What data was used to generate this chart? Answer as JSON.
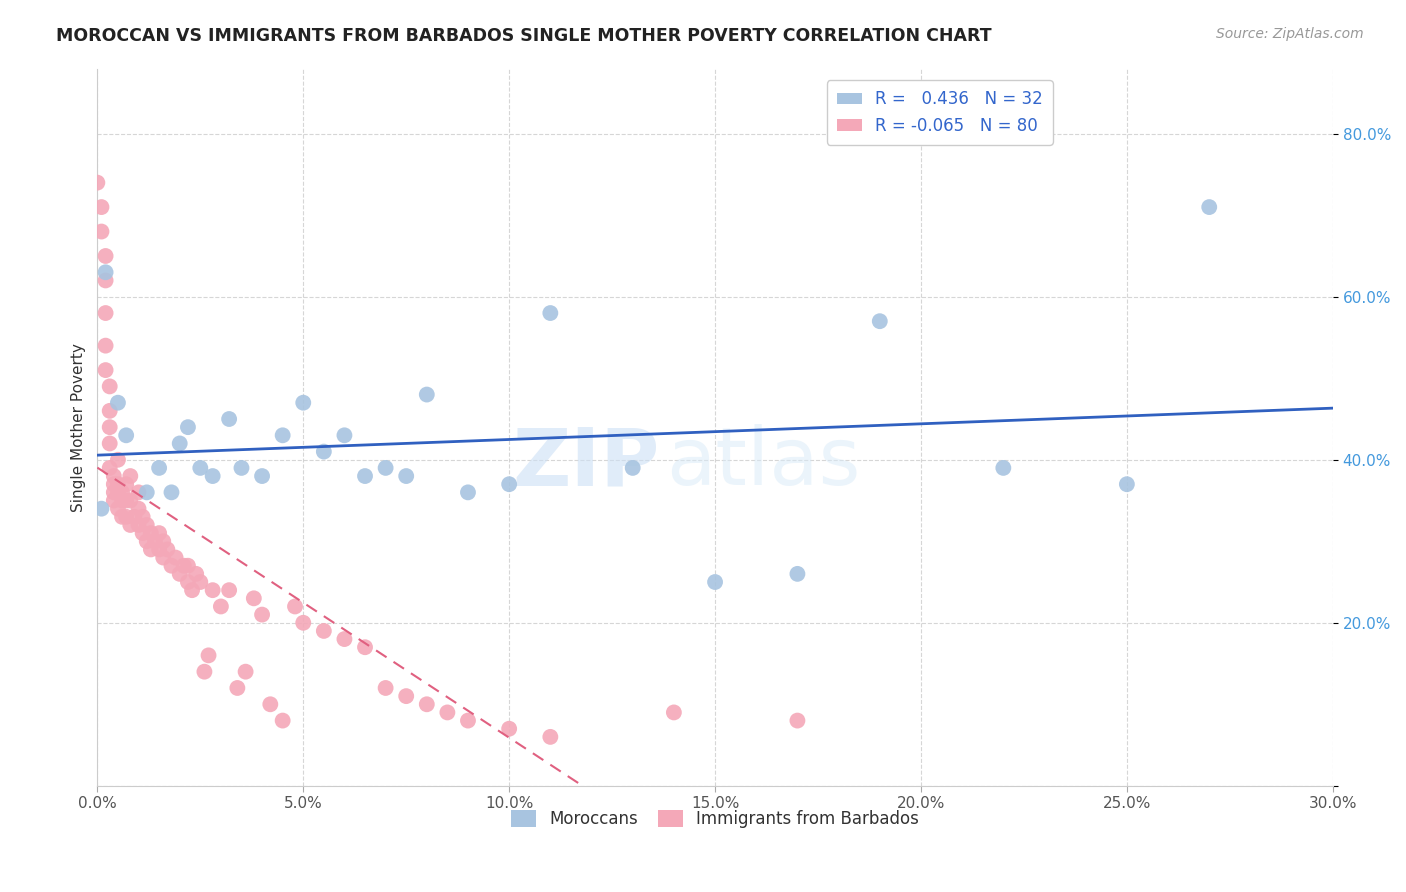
{
  "title": "MOROCCAN VS IMMIGRANTS FROM BARBADOS SINGLE MOTHER POVERTY CORRELATION CHART",
  "source": "Source: ZipAtlas.com",
  "ylabel": "Single Mother Poverty",
  "legend_label1": "Moroccans",
  "legend_label2": "Immigrants from Barbados",
  "R1": 0.436,
  "N1": 32,
  "R2": -0.065,
  "N2": 80,
  "color1": "#a8c4e0",
  "color2": "#f4a8b8",
  "line_color1": "#3060c0",
  "line_color2": "#e06080",
  "xmin": 0.0,
  "xmax": 0.3,
  "ymin": 0.0,
  "ymax": 0.88,
  "moroccan_x": [
    0.001,
    0.002,
    0.005,
    0.007,
    0.012,
    0.015,
    0.018,
    0.02,
    0.022,
    0.025,
    0.028,
    0.032,
    0.035,
    0.04,
    0.045,
    0.05,
    0.055,
    0.06,
    0.065,
    0.07,
    0.075,
    0.08,
    0.09,
    0.1,
    0.11,
    0.13,
    0.15,
    0.17,
    0.19,
    0.22,
    0.25,
    0.27
  ],
  "moroccan_y": [
    0.34,
    0.63,
    0.47,
    0.43,
    0.36,
    0.39,
    0.36,
    0.42,
    0.44,
    0.39,
    0.38,
    0.45,
    0.39,
    0.38,
    0.43,
    0.47,
    0.41,
    0.43,
    0.38,
    0.39,
    0.38,
    0.48,
    0.36,
    0.37,
    0.58,
    0.39,
    0.25,
    0.26,
    0.57,
    0.39,
    0.37,
    0.71
  ],
  "barbados_x": [
    0.0,
    0.001,
    0.001,
    0.002,
    0.002,
    0.002,
    0.002,
    0.002,
    0.003,
    0.003,
    0.003,
    0.003,
    0.003,
    0.004,
    0.004,
    0.004,
    0.004,
    0.005,
    0.005,
    0.005,
    0.005,
    0.006,
    0.006,
    0.006,
    0.007,
    0.007,
    0.007,
    0.008,
    0.008,
    0.008,
    0.009,
    0.01,
    0.01,
    0.01,
    0.011,
    0.011,
    0.012,
    0.012,
    0.013,
    0.013,
    0.014,
    0.015,
    0.015,
    0.016,
    0.016,
    0.017,
    0.018,
    0.019,
    0.02,
    0.021,
    0.022,
    0.022,
    0.023,
    0.024,
    0.025,
    0.026,
    0.027,
    0.028,
    0.03,
    0.032,
    0.034,
    0.036,
    0.038,
    0.04,
    0.042,
    0.045,
    0.048,
    0.05,
    0.055,
    0.06,
    0.065,
    0.07,
    0.075,
    0.08,
    0.085,
    0.09,
    0.1,
    0.11,
    0.14,
    0.17
  ],
  "barbados_y": [
    0.74,
    0.71,
    0.68,
    0.65,
    0.62,
    0.58,
    0.54,
    0.51,
    0.49,
    0.46,
    0.44,
    0.42,
    0.39,
    0.37,
    0.36,
    0.35,
    0.38,
    0.36,
    0.34,
    0.37,
    0.4,
    0.35,
    0.33,
    0.36,
    0.33,
    0.35,
    0.37,
    0.32,
    0.35,
    0.38,
    0.33,
    0.32,
    0.34,
    0.36,
    0.31,
    0.33,
    0.3,
    0.32,
    0.29,
    0.31,
    0.3,
    0.29,
    0.31,
    0.28,
    0.3,
    0.29,
    0.27,
    0.28,
    0.26,
    0.27,
    0.25,
    0.27,
    0.24,
    0.26,
    0.25,
    0.14,
    0.16,
    0.24,
    0.22,
    0.24,
    0.12,
    0.14,
    0.23,
    0.21,
    0.1,
    0.08,
    0.22,
    0.2,
    0.19,
    0.18,
    0.17,
    0.12,
    0.11,
    0.1,
    0.09,
    0.08,
    0.07,
    0.06,
    0.09,
    0.08
  ],
  "watermark_zip": "ZIP",
  "watermark_atlas": "atlas",
  "xticks": [
    0.0,
    0.05,
    0.1,
    0.15,
    0.2,
    0.25,
    0.3
  ],
  "yticks": [
    0.0,
    0.2,
    0.4,
    0.6,
    0.8
  ]
}
